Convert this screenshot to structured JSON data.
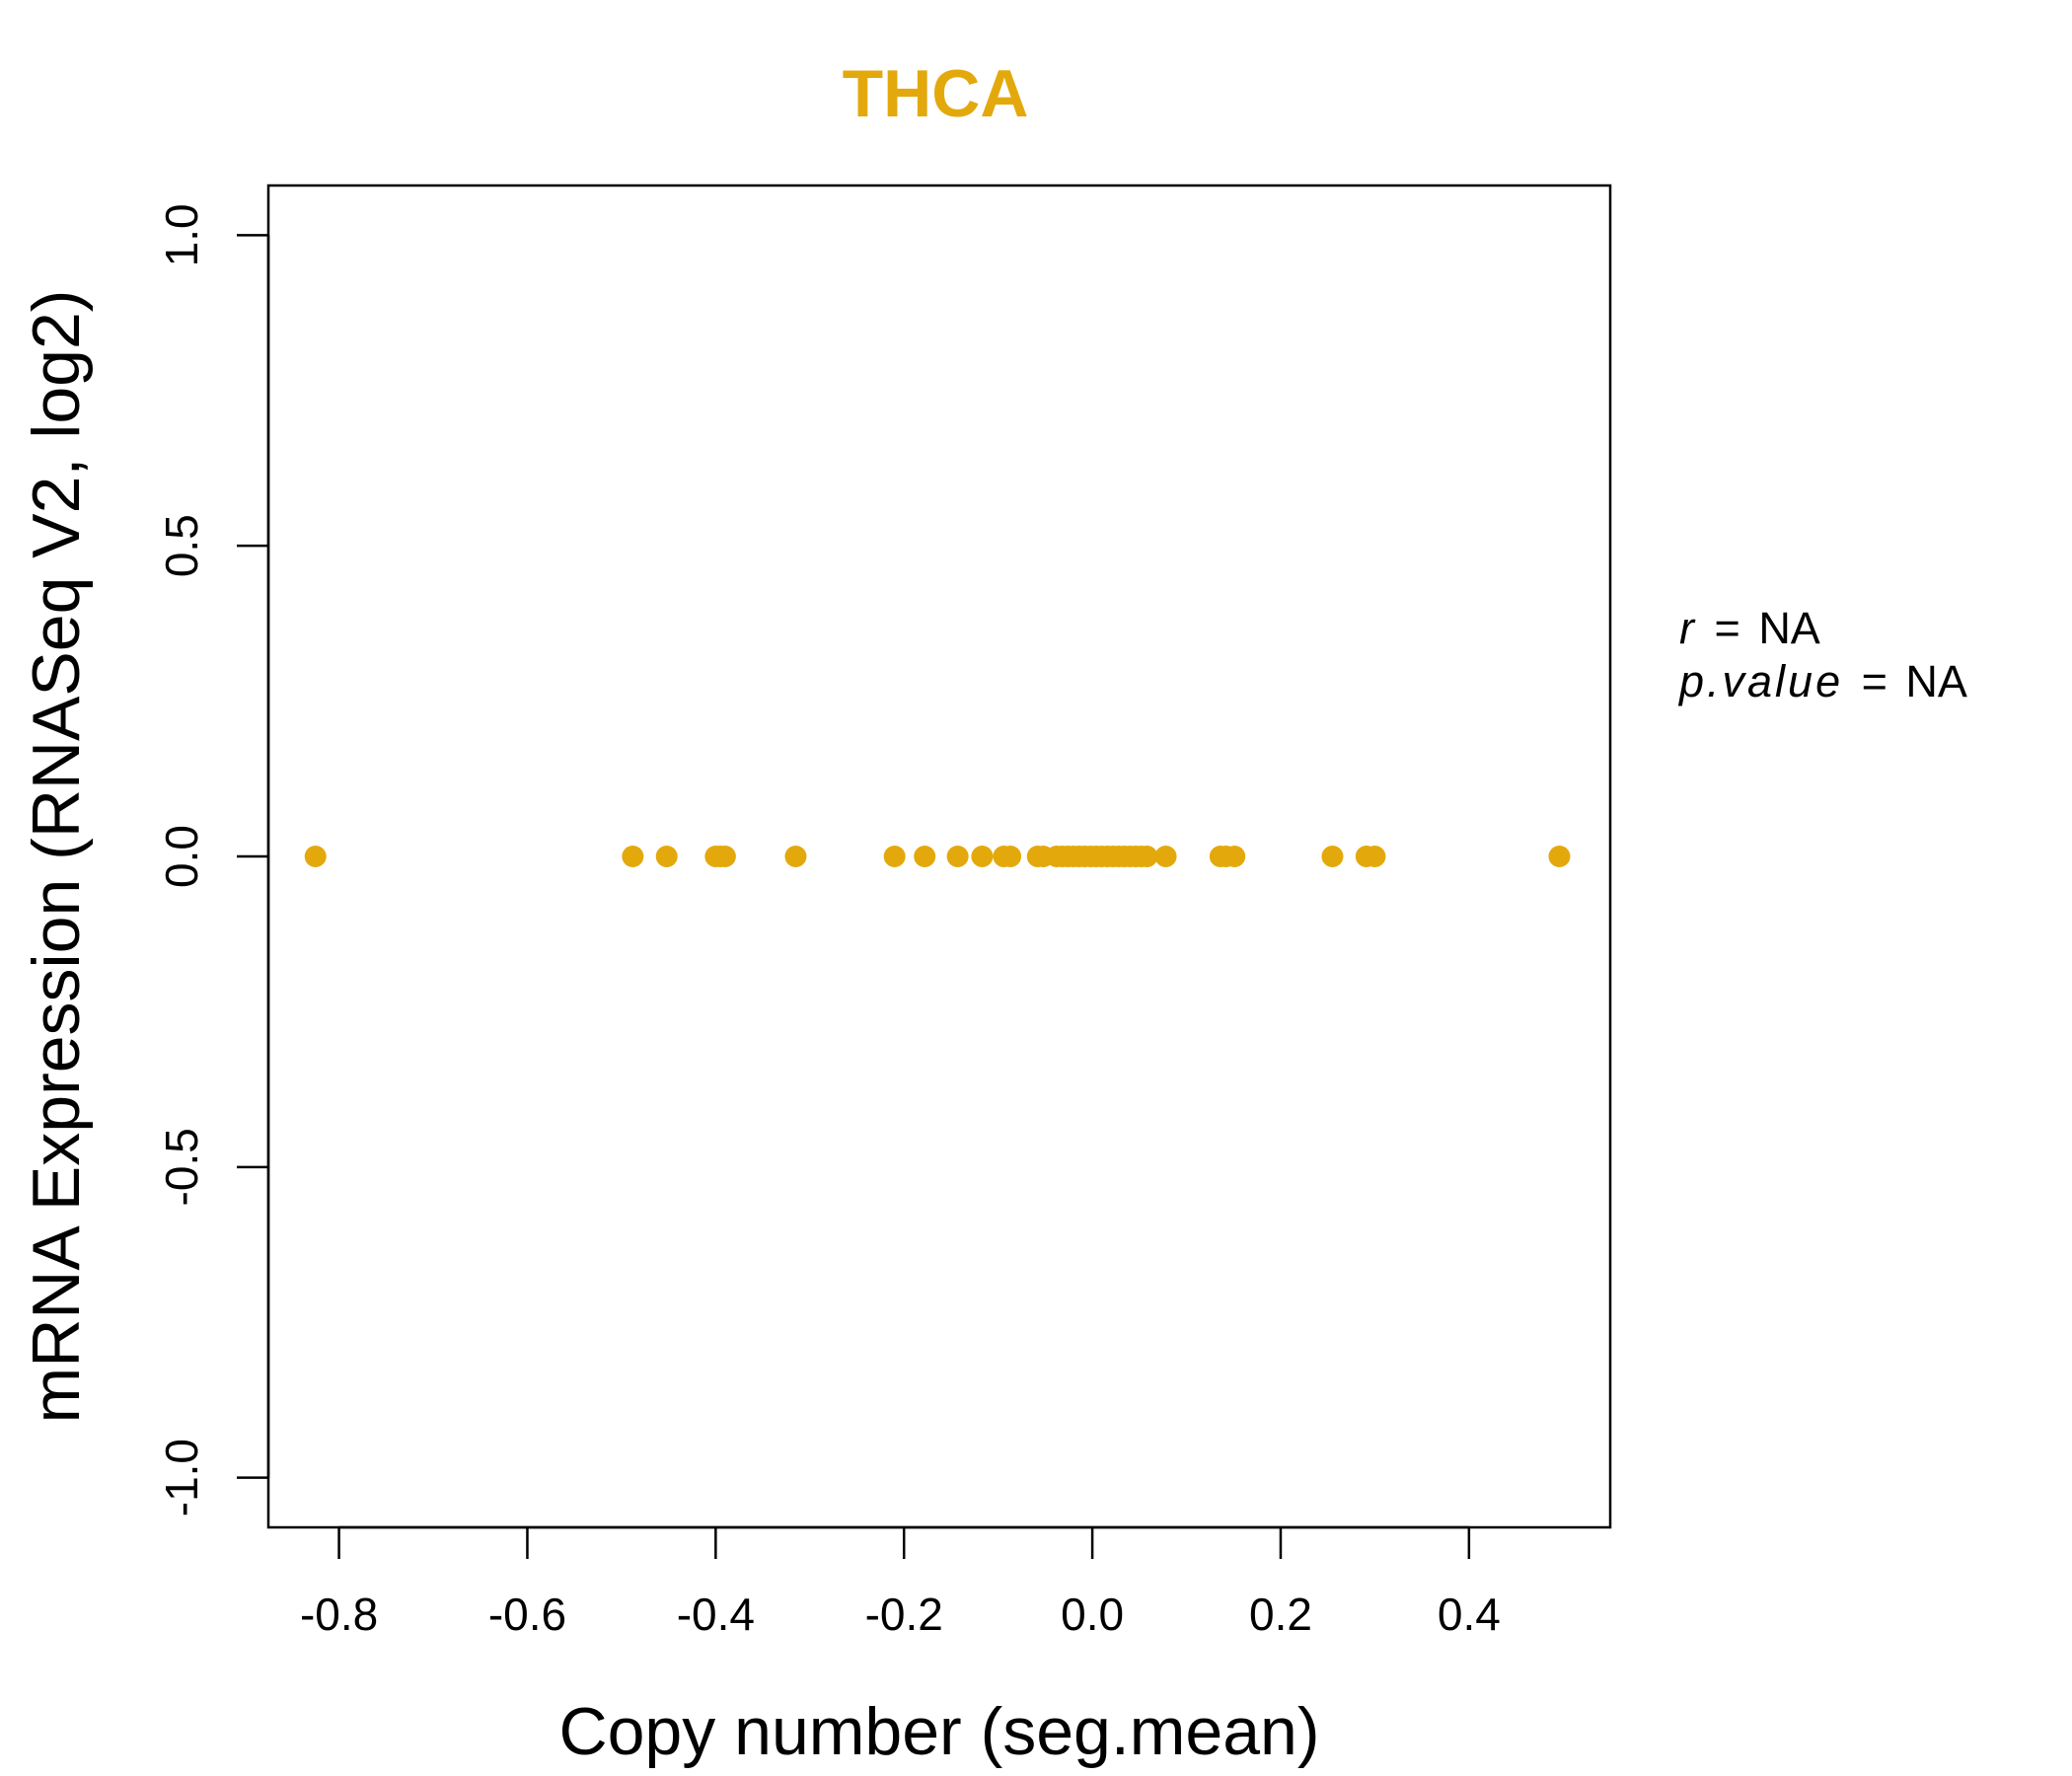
{
  "chart_data": {
    "type": "scatter",
    "title": "THCA",
    "xlabel": "Copy number (seg.mean)",
    "ylabel": "mRNA Expression (RNASeq V2, log2)",
    "xlim": [
      -0.875,
      0.55
    ],
    "ylim": [
      -1.08,
      1.08
    ],
    "xticks": [
      -0.8,
      -0.6,
      -0.4,
      -0.2,
      0.0,
      0.2,
      0.4
    ],
    "xtick_labels": [
      "-0.8",
      "-0.6",
      "-0.4",
      "-0.2",
      "0.0",
      "0.2",
      "0.4"
    ],
    "yticks": [
      -1.0,
      -0.5,
      0.0,
      0.5,
      1.0
    ],
    "ytick_labels": [
      "-1.0",
      "-0.5",
      "0.0",
      "0.5",
      "1.0"
    ],
    "color": "#E3A90C",
    "grid": false,
    "points": [
      {
        "x": -0.825,
        "y": 0
      },
      {
        "x": -0.488,
        "y": 0
      },
      {
        "x": -0.452,
        "y": 0
      },
      {
        "x": -0.4,
        "y": 0
      },
      {
        "x": -0.395,
        "y": 0
      },
      {
        "x": -0.39,
        "y": 0
      },
      {
        "x": -0.315,
        "y": 0
      },
      {
        "x": -0.21,
        "y": 0
      },
      {
        "x": -0.178,
        "y": 0
      },
      {
        "x": -0.143,
        "y": 0
      },
      {
        "x": -0.117,
        "y": 0
      },
      {
        "x": -0.094,
        "y": 0
      },
      {
        "x": -0.087,
        "y": 0
      },
      {
        "x": -0.058,
        "y": 0
      },
      {
        "x": -0.052,
        "y": 0
      },
      {
        "x": -0.038,
        "y": 0
      },
      {
        "x": -0.032,
        "y": 0
      },
      {
        "x": -0.026,
        "y": 0
      },
      {
        "x": -0.02,
        "y": 0
      },
      {
        "x": -0.014,
        "y": 0
      },
      {
        "x": -0.008,
        "y": 0
      },
      {
        "x": -0.002,
        "y": 0
      },
      {
        "x": 0.004,
        "y": 0
      },
      {
        "x": 0.01,
        "y": 0
      },
      {
        "x": 0.016,
        "y": 0
      },
      {
        "x": 0.022,
        "y": 0
      },
      {
        "x": 0.028,
        "y": 0
      },
      {
        "x": 0.034,
        "y": 0
      },
      {
        "x": 0.04,
        "y": 0
      },
      {
        "x": 0.046,
        "y": 0
      },
      {
        "x": 0.052,
        "y": 0
      },
      {
        "x": 0.058,
        "y": 0
      },
      {
        "x": 0.078,
        "y": 0
      },
      {
        "x": 0.136,
        "y": 0
      },
      {
        "x": 0.142,
        "y": 0
      },
      {
        "x": 0.151,
        "y": 0
      },
      {
        "x": 0.255,
        "y": 0
      },
      {
        "x": 0.291,
        "y": 0
      },
      {
        "x": 0.3,
        "y": 0
      },
      {
        "x": 0.496,
        "y": 0
      }
    ]
  },
  "stats": {
    "r_label": "r",
    "r_value": "NA",
    "p_label": "p.value",
    "p_value": "NA",
    "eq": "="
  }
}
